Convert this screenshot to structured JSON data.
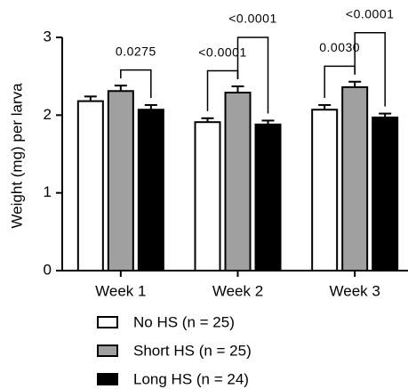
{
  "chart_data": {
    "type": "bar",
    "y_label": "Weight (mg) per larva",
    "categories": [
      "Week 1",
      "Week 2",
      "Week 3"
    ],
    "series": [
      {
        "name": "No HS (n = 25)",
        "color": "#ffffff",
        "values": [
          2.18,
          1.91,
          2.07
        ],
        "errors": [
          0.06,
          0.05,
          0.06
        ]
      },
      {
        "name": "Short HS (n = 25)",
        "color": "#a0a0a0",
        "values": [
          2.31,
          2.29,
          2.36
        ],
        "errors": [
          0.07,
          0.08,
          0.07
        ]
      },
      {
        "name": "Long HS (n = 24)",
        "color": "#000000",
        "values": [
          2.07,
          1.88,
          1.97
        ],
        "errors": [
          0.06,
          0.05,
          0.05
        ]
      }
    ],
    "annotations": [
      {
        "text": "0.0275",
        "category": 0,
        "from": 1,
        "to": 2
      },
      {
        "text": "<0.0001",
        "category": 1,
        "from": 0,
        "to": 1
      },
      {
        "text": "<0.0001",
        "category": 1,
        "from": 1,
        "to": 2
      },
      {
        "text": "0.0030",
        "category": 2,
        "from": 0,
        "to": 1
      },
      {
        "text": "<0.0001",
        "category": 2,
        "from": 1,
        "to": 2
      }
    ],
    "ylim": [
      0,
      3
    ],
    "yticks": [
      0,
      1,
      2,
      3
    ]
  }
}
